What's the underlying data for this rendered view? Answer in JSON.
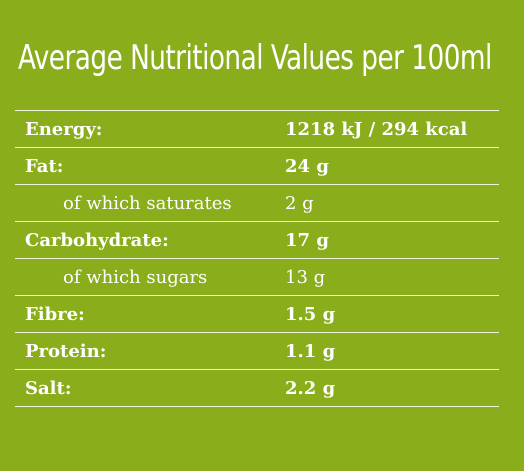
{
  "title": "Average Nutritional Values per 100ml",
  "rows": [
    {
      "label": "Energy:",
      "value": "1218 kJ / 294 kcal"
    },
    {
      "label": "Fat:",
      "value": "24 g"
    },
    {
      "label": "of which saturates",
      "value": "2 g"
    },
    {
      "label": "Carbohydrate:",
      "value": "17 g"
    },
    {
      "label": "of which sugars",
      "value": "13 g"
    },
    {
      "label": "Fibre:",
      "value": "1.5 g"
    },
    {
      "label": "Protein:",
      "value": "1.1 g"
    },
    {
      "label": "Salt:",
      "value": "2.2 g"
    }
  ],
  "colors": {
    "background": "#8aad1c",
    "text": "#ffffff",
    "rule": "#ffffff"
  }
}
